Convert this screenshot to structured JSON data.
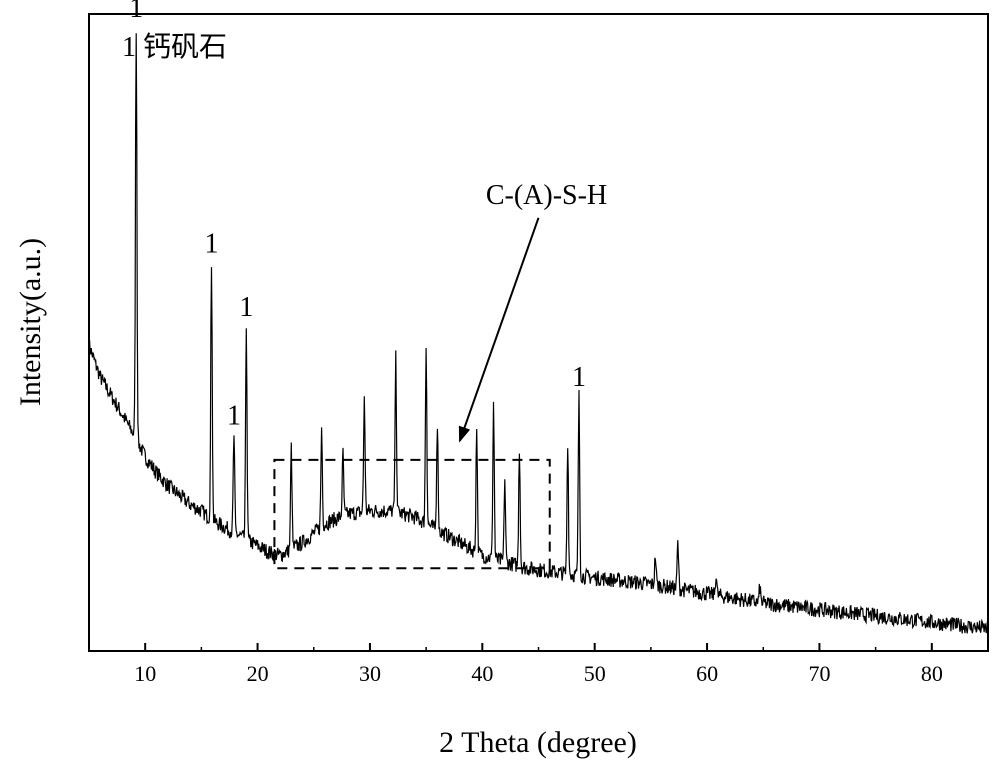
{
  "chart_data": {
    "type": "line",
    "title": "",
    "xlabel": "2 Theta (degree)",
    "ylabel": "Intensity(a.u.)",
    "xlim": [
      5,
      85
    ],
    "ylim": [
      0,
      100
    ],
    "x_ticks": [
      10,
      20,
      30,
      40,
      50,
      60,
      70,
      80
    ],
    "y_ticks_labeled": false,
    "grid": false,
    "legend": "none",
    "line_color": "#000000",
    "series": [
      {
        "name": "",
        "baseline": [
          [
            5,
            48
          ],
          [
            6,
            43
          ],
          [
            7,
            40
          ],
          [
            8,
            37
          ],
          [
            9,
            34
          ],
          [
            10,
            30.5
          ],
          [
            11,
            28
          ],
          [
            12,
            26
          ],
          [
            13,
            24.5
          ],
          [
            14,
            23
          ],
          [
            15,
            22
          ],
          [
            16,
            20.5
          ],
          [
            17,
            19.5
          ],
          [
            18,
            18.5
          ],
          [
            19,
            17.5
          ],
          [
            20,
            16.5
          ],
          [
            21,
            15.5
          ],
          [
            22,
            15
          ],
          [
            24,
            17
          ],
          [
            26,
            20
          ],
          [
            28,
            21.5
          ],
          [
            30,
            22
          ],
          [
            32,
            22
          ],
          [
            34,
            21
          ],
          [
            36,
            19
          ],
          [
            38,
            17
          ],
          [
            40,
            15
          ],
          [
            42,
            14
          ],
          [
            44,
            13
          ],
          [
            46,
            12.5
          ],
          [
            48,
            12
          ],
          [
            50,
            11.5
          ],
          [
            55,
            10.5
          ],
          [
            60,
            9
          ],
          [
            65,
            7.5
          ],
          [
            70,
            6.5
          ],
          [
            75,
            5.5
          ],
          [
            80,
            4.5
          ],
          [
            85,
            3.5
          ]
        ],
        "peaks": [
          {
            "x": 9.2,
            "y": 98
          },
          {
            "x": 15.9,
            "y": 61
          },
          {
            "x": 17.9,
            "y": 34
          },
          {
            "x": 19.0,
            "y": 51
          },
          {
            "x": 23.0,
            "y": 32
          },
          {
            "x": 25.7,
            "y": 35
          },
          {
            "x": 27.6,
            "y": 31
          },
          {
            "x": 29.5,
            "y": 40
          },
          {
            "x": 32.3,
            "y": 46
          },
          {
            "x": 35.0,
            "y": 48
          },
          {
            "x": 36.0,
            "y": 36
          },
          {
            "x": 39.5,
            "y": 35
          },
          {
            "x": 41.0,
            "y": 39
          },
          {
            "x": 42.0,
            "y": 27
          },
          {
            "x": 43.3,
            "y": 32
          },
          {
            "x": 47.6,
            "y": 33
          },
          {
            "x": 48.6,
            "y": 40
          },
          {
            "x": 55.4,
            "y": 15
          },
          {
            "x": 57.4,
            "y": 17
          },
          {
            "x": 60.8,
            "y": 12
          },
          {
            "x": 64.7,
            "y": 10
          }
        ]
      }
    ],
    "annotations": {
      "legend_text": "1 钙矾石",
      "peak_marks": [
        {
          "text": "1",
          "x": 9.2,
          "y": 98
        },
        {
          "text": "1",
          "x": 15.9,
          "y": 61
        },
        {
          "text": "1",
          "x": 17.9,
          "y": 34
        },
        {
          "text": "1",
          "x": 19.0,
          "y": 51
        },
        {
          "text": "1",
          "x": 48.6,
          "y": 40
        }
      ],
      "region": {
        "label": "C-(A)-S-H",
        "x_range": [
          21.5,
          46
        ],
        "y_range": [
          13,
          30
        ]
      },
      "arrow": {
        "from": [
          45,
          68
        ],
        "to": [
          38,
          33
        ]
      }
    }
  }
}
